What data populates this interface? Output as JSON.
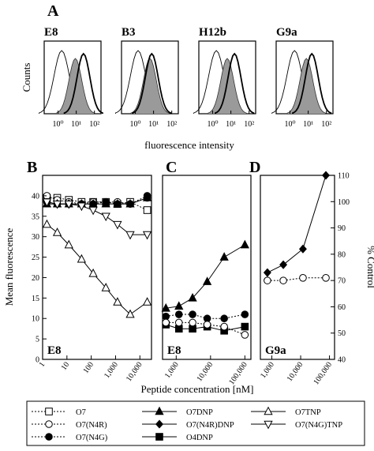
{
  "figure": {
    "panel_labels": [
      "A",
      "B",
      "C",
      "D"
    ],
    "histograms": {
      "ylabel": "Counts",
      "xlabel": "fluorescence intensity",
      "panels": [
        {
          "name": "E8"
        },
        {
          "name": "B3"
        },
        {
          "name": "H12b"
        },
        {
          "name": "G9a"
        }
      ]
    },
    "bottom": {
      "ylabel_left": "Mean fluorescence",
      "ylabel_right": "% Control",
      "xlabel": "Peptide concentration [nM]",
      "corner_labels": [
        "E8",
        "E8",
        "G9a"
      ]
    }
  },
  "chart_data": [
    {
      "type": "line",
      "panel": "A",
      "title": "",
      "subpanels": [
        {
          "name": "E8",
          "x_ticks": [
            "10⁰",
            "10¹",
            "10²"
          ],
          "curves": [
            {
              "style": "open",
              "peak": 0.2
            },
            {
              "style": "filled",
              "peak": 0.95
            },
            {
              "style": "bold",
              "peak": 1.4
            }
          ]
        },
        {
          "name": "B3",
          "x_ticks": [
            "10⁰",
            "10¹",
            "10²"
          ],
          "curves": [
            {
              "style": "open",
              "peak": 0.15
            },
            {
              "style": "filled",
              "peak": 0.8
            },
            {
              "style": "bold",
              "peak": 0.9
            }
          ]
        },
        {
          "name": "H12b",
          "x_ticks": [
            "10⁰",
            "10¹",
            "10²"
          ],
          "curves": [
            {
              "style": "open",
              "peak": 0.2
            },
            {
              "style": "filled",
              "peak": 0.8
            },
            {
              "style": "bold",
              "peak": 1.2
            }
          ]
        },
        {
          "name": "G9a",
          "x_ticks": [
            "10⁰",
            "10¹",
            "10²"
          ],
          "curves": [
            {
              "style": "open",
              "peak": 0.25
            },
            {
              "style": "filled",
              "peak": 0.9
            },
            {
              "style": "bold",
              "peak": 1.2
            }
          ]
        }
      ],
      "xlabel": "fluorescence intensity",
      "ylabel": "Counts",
      "xscale": "log"
    },
    {
      "type": "line",
      "panel": "B",
      "xscale": "log",
      "xlim": [
        1,
        30000
      ],
      "ylim": [
        0,
        45
      ],
      "y_ticks": [
        0,
        5,
        10,
        15,
        20,
        25,
        30,
        35,
        40
      ],
      "x_ticks": [
        "1",
        "10",
        "100",
        "1,000",
        "10,000"
      ],
      "series": [
        {
          "name": "O7",
          "style": "dashed",
          "marker": "open-square",
          "x": [
            1.5,
            4,
            12,
            40,
            120,
            400,
            1200,
            4000,
            20000
          ],
          "y": [
            39.5,
            39.5,
            39,
            38.5,
            38.5,
            38.5,
            38,
            38.5,
            36.5
          ]
        },
        {
          "name": "O7(N4R)",
          "style": "dashed",
          "marker": "open-circle",
          "x": [
            1.5,
            4,
            12,
            40,
            120,
            400,
            1200,
            4000,
            20000
          ],
          "y": [
            40,
            39,
            38.5,
            38,
            38.5,
            38.5,
            38.5,
            38,
            39.5
          ]
        },
        {
          "name": "O7(N4G)",
          "style": "dashed",
          "marker": "filled-circle",
          "x": [
            1.5,
            4,
            12,
            40,
            120,
            400,
            1200,
            4000,
            20000
          ],
          "y": [
            38.5,
            38,
            38,
            38,
            38,
            38.5,
            38,
            38,
            40
          ]
        },
        {
          "name": "O7DNP",
          "style": "solid",
          "marker": "filled-triangle",
          "x": [
            1.5,
            4,
            12,
            40,
            120,
            400,
            1200,
            4000,
            20000
          ],
          "y": [
            38,
            38,
            38,
            38,
            38,
            38,
            38,
            38,
            39.5
          ]
        },
        {
          "name": "O7TNP",
          "style": "solid",
          "marker": "open-triangle",
          "x": [
            1.5,
            4,
            12,
            40,
            120,
            400,
            1200,
            4000,
            20000
          ],
          "y": [
            33,
            31,
            28,
            24.5,
            21,
            17.5,
            14,
            11,
            14
          ]
        },
        {
          "name": "O7(N4G)TNP",
          "style": "solid",
          "marker": "open-inverted-triangle",
          "x": [
            1.5,
            4,
            12,
            40,
            120,
            400,
            1200,
            4000,
            20000
          ],
          "y": [
            38.5,
            38,
            38,
            37.5,
            36.5,
            35,
            33,
            30.5,
            30.5
          ]
        }
      ]
    },
    {
      "type": "line",
      "panel": "C",
      "xscale": "log",
      "xlim": [
        400,
        150000
      ],
      "ylim": [
        0,
        45
      ],
      "x_ticks": [
        "1,000",
        "10,000",
        "100,000"
      ],
      "series": [
        {
          "name": "O7DNP",
          "style": "solid",
          "marker": "filled-triangle",
          "x": [
            500,
            1200,
            3000,
            8000,
            25000,
            100000
          ],
          "y": [
            12.5,
            13,
            15,
            19,
            25,
            28
          ]
        },
        {
          "name": "O7(N4G)",
          "style": "dashed",
          "marker": "filled-circle",
          "x": [
            500,
            1200,
            3000,
            8000,
            25000,
            100000
          ],
          "y": [
            10.5,
            11,
            11,
            10,
            10,
            11
          ]
        },
        {
          "name": "O4DNP",
          "style": "solid",
          "marker": "filled-square",
          "x": [
            500,
            1200,
            3000,
            8000,
            25000,
            100000
          ],
          "y": [
            8.5,
            7.5,
            7.5,
            8,
            7,
            8
          ]
        },
        {
          "name": "O7(N4R)",
          "style": "dashed",
          "marker": "open-circle",
          "x": [
            500,
            1200,
            3000,
            8000,
            25000,
            100000
          ],
          "y": [
            9,
            9,
            9,
            8.5,
            8,
            6
          ]
        }
      ]
    },
    {
      "type": "line",
      "panel": "D",
      "xscale": "log",
      "xlim": [
        400,
        150000
      ],
      "ylim": [
        40,
        110
      ],
      "y_ticks": [
        40,
        50,
        60,
        70,
        80,
        90,
        100,
        110
      ],
      "x_ticks": [
        "1,000",
        "10,000",
        "100,000"
      ],
      "ylabel": "% Control",
      "series": [
        {
          "name": "O7(N4R)DNP",
          "style": "solid",
          "marker": "filled-diamond",
          "x": [
            700,
            2500,
            12000,
            75000
          ],
          "y": [
            73,
            76,
            82,
            110
          ]
        },
        {
          "name": "O7(N4R)",
          "style": "dashed",
          "marker": "open-circle",
          "x": [
            700,
            2500,
            12000,
            75000
          ],
          "y": [
            70,
            70,
            71,
            71
          ]
        }
      ]
    }
  ],
  "legend": [
    {
      "label": "O7",
      "style": "dashed",
      "marker": "open-square"
    },
    {
      "label": "O7DNP",
      "style": "solid",
      "marker": "filled-triangle"
    },
    {
      "label": "O7TNP",
      "style": "solid",
      "marker": "open-triangle"
    },
    {
      "label": "O7(N4R)",
      "style": "dashed",
      "marker": "open-circle"
    },
    {
      "label": "O7(N4R)DNP",
      "style": "solid",
      "marker": "filled-diamond"
    },
    {
      "label": "O7(N4G)TNP",
      "style": "solid",
      "marker": "open-inverted-triangle"
    },
    {
      "label": "O7(N4G)",
      "style": "dashed",
      "marker": "filled-circle"
    },
    {
      "label": "O4DNP",
      "style": "solid",
      "marker": "filled-square"
    }
  ]
}
